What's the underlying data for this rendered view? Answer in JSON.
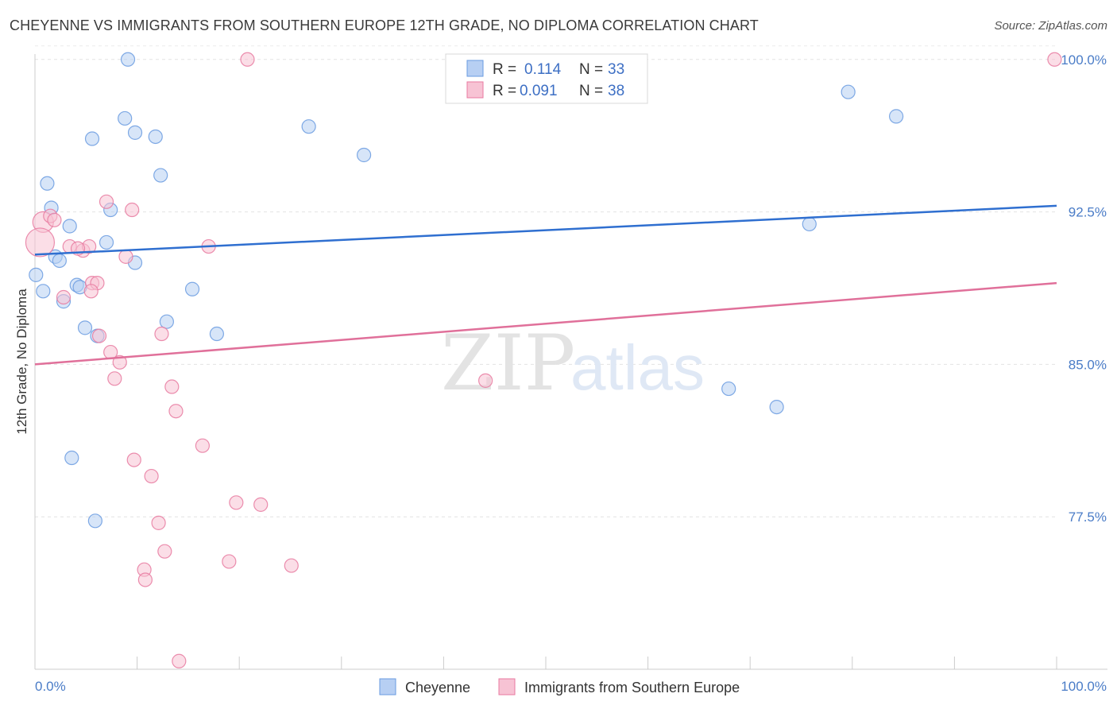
{
  "header": {
    "title": "CHEYENNE VS IMMIGRANTS FROM SOUTHERN EUROPE 12TH GRADE, NO DIPLOMA CORRELATION CHART",
    "source": "Source: ZipAtlas.com"
  },
  "watermark": {
    "zip": "ZIP",
    "atlas": "atlas"
  },
  "chart_data": {
    "type": "scatter",
    "ylabel": "12th Grade, No Diploma",
    "xlim": [
      0,
      100
    ],
    "ylim": [
      70,
      100.5
    ],
    "x_tick_labels": [
      "0.0%",
      "100.0%"
    ],
    "y_ticks": [
      77.5,
      85.0,
      92.5,
      100.0
    ],
    "y_tick_labels": [
      "77.5%",
      "85.0%",
      "92.5%",
      "100.0%"
    ],
    "grid": true,
    "legend_position": "top-center",
    "series": [
      {
        "name": "Cheyenne",
        "color": "#6a9be0",
        "fill": "#b7cff3",
        "r_label": "R =",
        "r_value": "0.114",
        "n_label": "N =",
        "n_value": "33",
        "trend": [
          [
            0,
            90.4
          ],
          [
            100,
            92.8
          ]
        ],
        "points": [
          [
            9.1,
            100.0
          ],
          [
            8.8,
            97.1
          ],
          [
            9.8,
            96.4
          ],
          [
            11.8,
            96.2
          ],
          [
            5.6,
            96.1
          ],
          [
            26.8,
            96.7
          ],
          [
            32.2,
            95.3
          ],
          [
            12.3,
            94.3
          ],
          [
            1.2,
            93.9
          ],
          [
            1.6,
            92.7
          ],
          [
            7.4,
            92.6
          ],
          [
            3.4,
            91.8
          ],
          [
            7.0,
            91.0
          ],
          [
            2.0,
            90.3
          ],
          [
            2.4,
            90.1
          ],
          [
            9.8,
            90.0
          ],
          [
            0.1,
            89.4
          ],
          [
            4.1,
            88.9
          ],
          [
            4.4,
            88.8
          ],
          [
            15.4,
            88.7
          ],
          [
            0.8,
            88.6
          ],
          [
            2.8,
            88.1
          ],
          [
            12.9,
            87.1
          ],
          [
            4.9,
            86.8
          ],
          [
            6.1,
            86.4
          ],
          [
            17.8,
            86.5
          ],
          [
            79.6,
            98.4
          ],
          [
            84.3,
            97.2
          ],
          [
            75.8,
            91.9
          ],
          [
            67.9,
            83.8
          ],
          [
            72.6,
            82.9
          ],
          [
            3.6,
            80.4
          ],
          [
            5.9,
            77.3
          ]
        ]
      },
      {
        "name": "Immigrants from Southern Europe",
        "color": "#e87aa0",
        "fill": "#f7c3d4",
        "r_label": "R =",
        "r_value": "0.091",
        "n_label": "N =",
        "n_value": "38",
        "trend": [
          [
            0,
            85.0
          ],
          [
            100,
            89.0
          ]
        ],
        "points": [
          [
            0.8,
            92.0
          ],
          [
            0.5,
            91.0
          ],
          [
            1.5,
            92.3
          ],
          [
            1.9,
            92.1
          ],
          [
            7.0,
            93.0
          ],
          [
            9.5,
            92.6
          ],
          [
            20.8,
            100.0
          ],
          [
            99.8,
            100.0
          ],
          [
            3.4,
            90.8
          ],
          [
            4.7,
            90.6
          ],
          [
            5.3,
            90.8
          ],
          [
            4.2,
            90.7
          ],
          [
            17.0,
            90.8
          ],
          [
            8.9,
            90.3
          ],
          [
            5.6,
            89.0
          ],
          [
            6.1,
            89.0
          ],
          [
            5.5,
            88.6
          ],
          [
            2.8,
            88.3
          ],
          [
            6.3,
            86.4
          ],
          [
            12.4,
            86.5
          ],
          [
            7.4,
            85.6
          ],
          [
            8.3,
            85.1
          ],
          [
            7.8,
            84.3
          ],
          [
            13.4,
            83.9
          ],
          [
            44.1,
            84.2
          ],
          [
            13.8,
            82.7
          ],
          [
            16.4,
            81.0
          ],
          [
            9.7,
            80.3
          ],
          [
            11.4,
            79.5
          ],
          [
            19.7,
            78.2
          ],
          [
            22.1,
            78.1
          ],
          [
            12.1,
            77.2
          ],
          [
            12.7,
            75.8
          ],
          [
            19.0,
            75.3
          ],
          [
            25.1,
            75.1
          ],
          [
            10.7,
            74.9
          ],
          [
            10.8,
            74.4
          ],
          [
            14.1,
            70.4
          ]
        ]
      }
    ]
  }
}
